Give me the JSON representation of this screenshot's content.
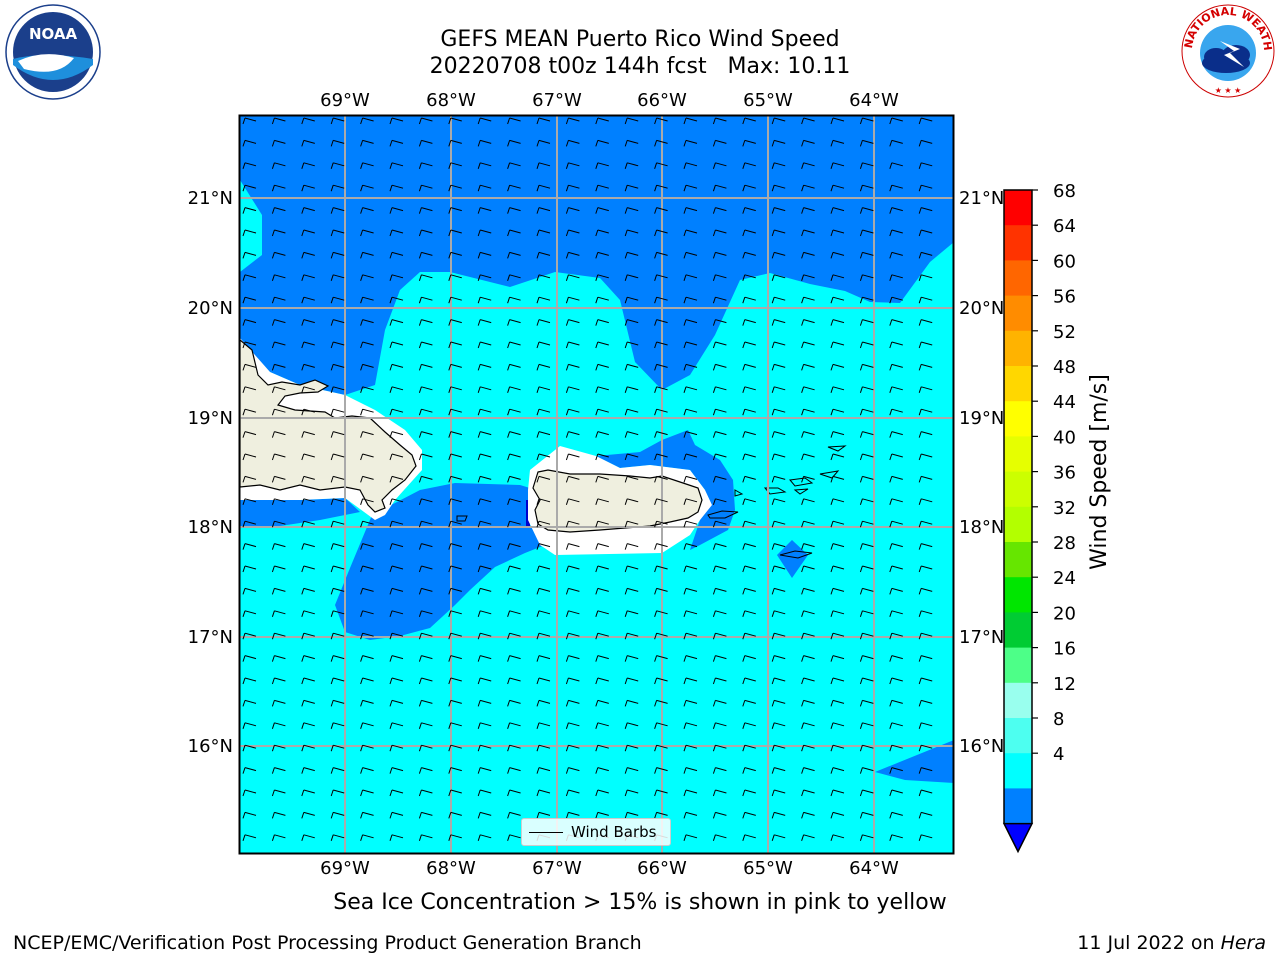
{
  "title_line1": "GEFS MEAN Puerto Rico Wind Speed",
  "title_line2": "20220708 t00z 144h fcst   Max: 10.11",
  "lon_labels": [
    "69°W",
    "68°W",
    "67°W",
    "66°W",
    "65°W",
    "64°W"
  ],
  "lat_labels": [
    "21°N",
    "20°N",
    "19°N",
    "18°N",
    "17°N",
    "16°N"
  ],
  "colorbar": {
    "label": "Wind Speed [m/s]",
    "ticks": [
      "68",
      "64",
      "60",
      "56",
      "52",
      "48",
      "44",
      "40",
      "36",
      "32",
      "28",
      "24",
      "20",
      "16",
      "12",
      "8",
      "4"
    ],
    "colors": [
      "#ff0000",
      "#ff3300",
      "#ff6600",
      "#ff8c00",
      "#ffb300",
      "#ffd700",
      "#ffff00",
      "#e6ff00",
      "#ccff00",
      "#b3ff00",
      "#66e600",
      "#00e600",
      "#00cc33",
      "#4dff88",
      "#99ffee",
      "#4dfff0",
      "#00ffff",
      "#0080ff"
    ],
    "extend_color": "#0000ff"
  },
  "legend_label": "Wind Barbs",
  "sea_ice_note": "Sea Ice Concentration > 15% is shown in pink to yellow",
  "footer_left": "NCEP/EMC/Verification Post Processing Product Generation Branch",
  "footer_date": "11 Jul 2022 on ",
  "footer_host": "Hera",
  "logos": {
    "left": "NOAA",
    "right": "NATIONAL WEATHER SERVICE"
  },
  "map_colors": {
    "light": "#00ffff",
    "mid": "#0080ff",
    "land": "#efefdf",
    "coast": "#000000"
  }
}
